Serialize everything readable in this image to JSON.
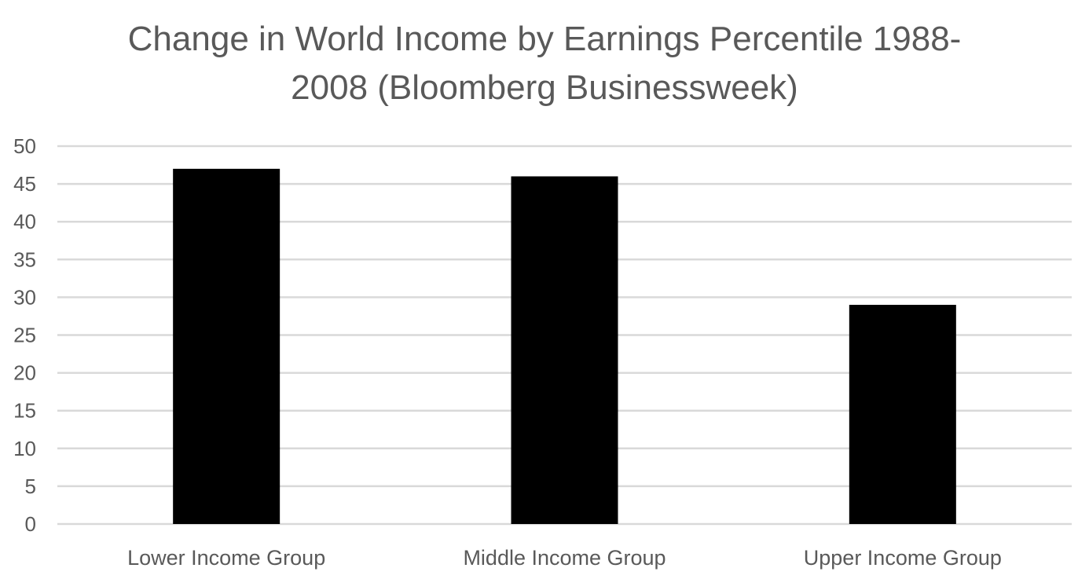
{
  "chart_data": {
    "type": "bar",
    "title_lines": [
      "Change in World Income by Earnings Percentile 1988-",
      "2008 (Bloomberg Businessweek)"
    ],
    "categories": [
      "Lower Income Group",
      "Middle Income Group",
      "Upper Income Group"
    ],
    "values": [
      47,
      46,
      29
    ],
    "xlabel": "",
    "ylabel": "",
    "ylim": [
      0,
      50
    ],
    "yticks": [
      0,
      5,
      10,
      15,
      20,
      25,
      30,
      35,
      40,
      45,
      50
    ],
    "grid": true,
    "legend": "none",
    "bar_color": "#000000",
    "grid_color": "#d9d9d9",
    "text_color": "#595959"
  }
}
